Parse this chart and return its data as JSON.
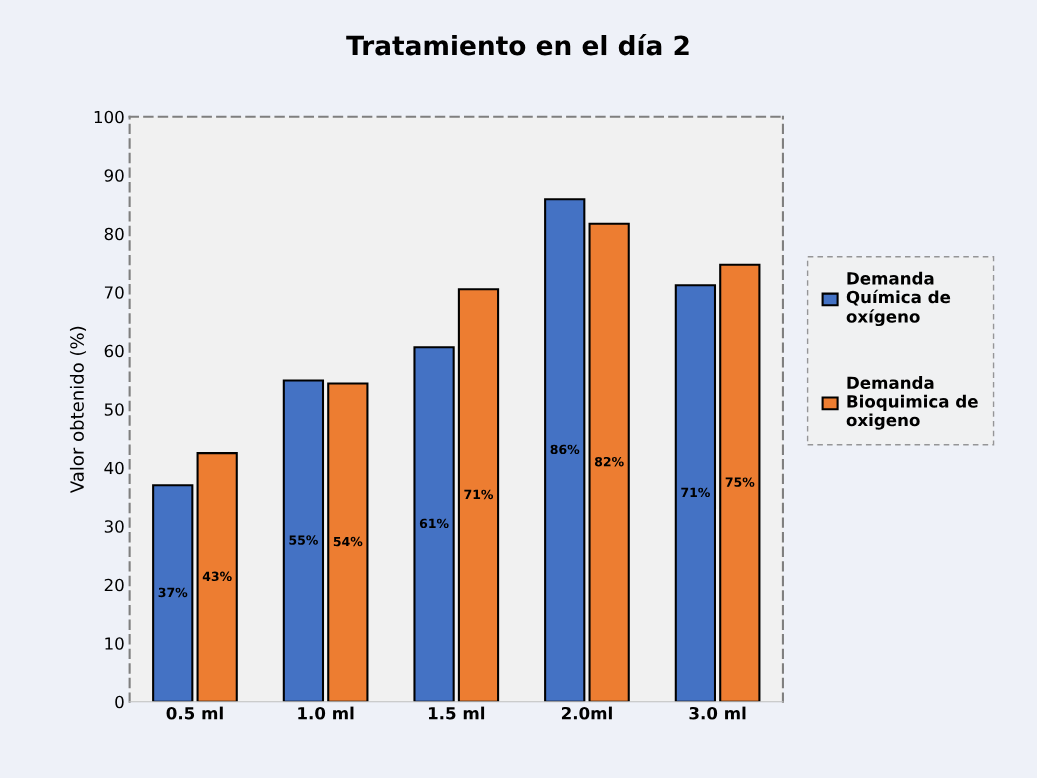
{
  "chart_data": {
    "type": "bar",
    "title": "Tratamiento en el día 2",
    "ylabel": "Valor obtenido (%)",
    "categories": [
      "0.5 ml",
      "1.0 ml",
      "1.5 ml",
      "2.0ml",
      "3.0 ml"
    ],
    "series": [
      {
        "name": "Demanda Química de oxígeno",
        "color": "#4472c4",
        "values": [
          37,
          54.9,
          60.6,
          85.9,
          71.2
        ],
        "value_labels": [
          "37%",
          "55%",
          "61%",
          "86%",
          "71%"
        ]
      },
      {
        "name": "Demanda Bioquimica de oxigeno",
        "color": "#ed7d31",
        "values": [
          42.5,
          54.4,
          70.5,
          81.7,
          74.7
        ],
        "value_labels": [
          "43%",
          "54%",
          "71%",
          "82%",
          "75%"
        ]
      }
    ],
    "ylim": [
      0,
      100
    ],
    "yticks": [
      0,
      10,
      20,
      30,
      40,
      50,
      60,
      70,
      80,
      90,
      100
    ],
    "grid": false,
    "legend": "right"
  }
}
